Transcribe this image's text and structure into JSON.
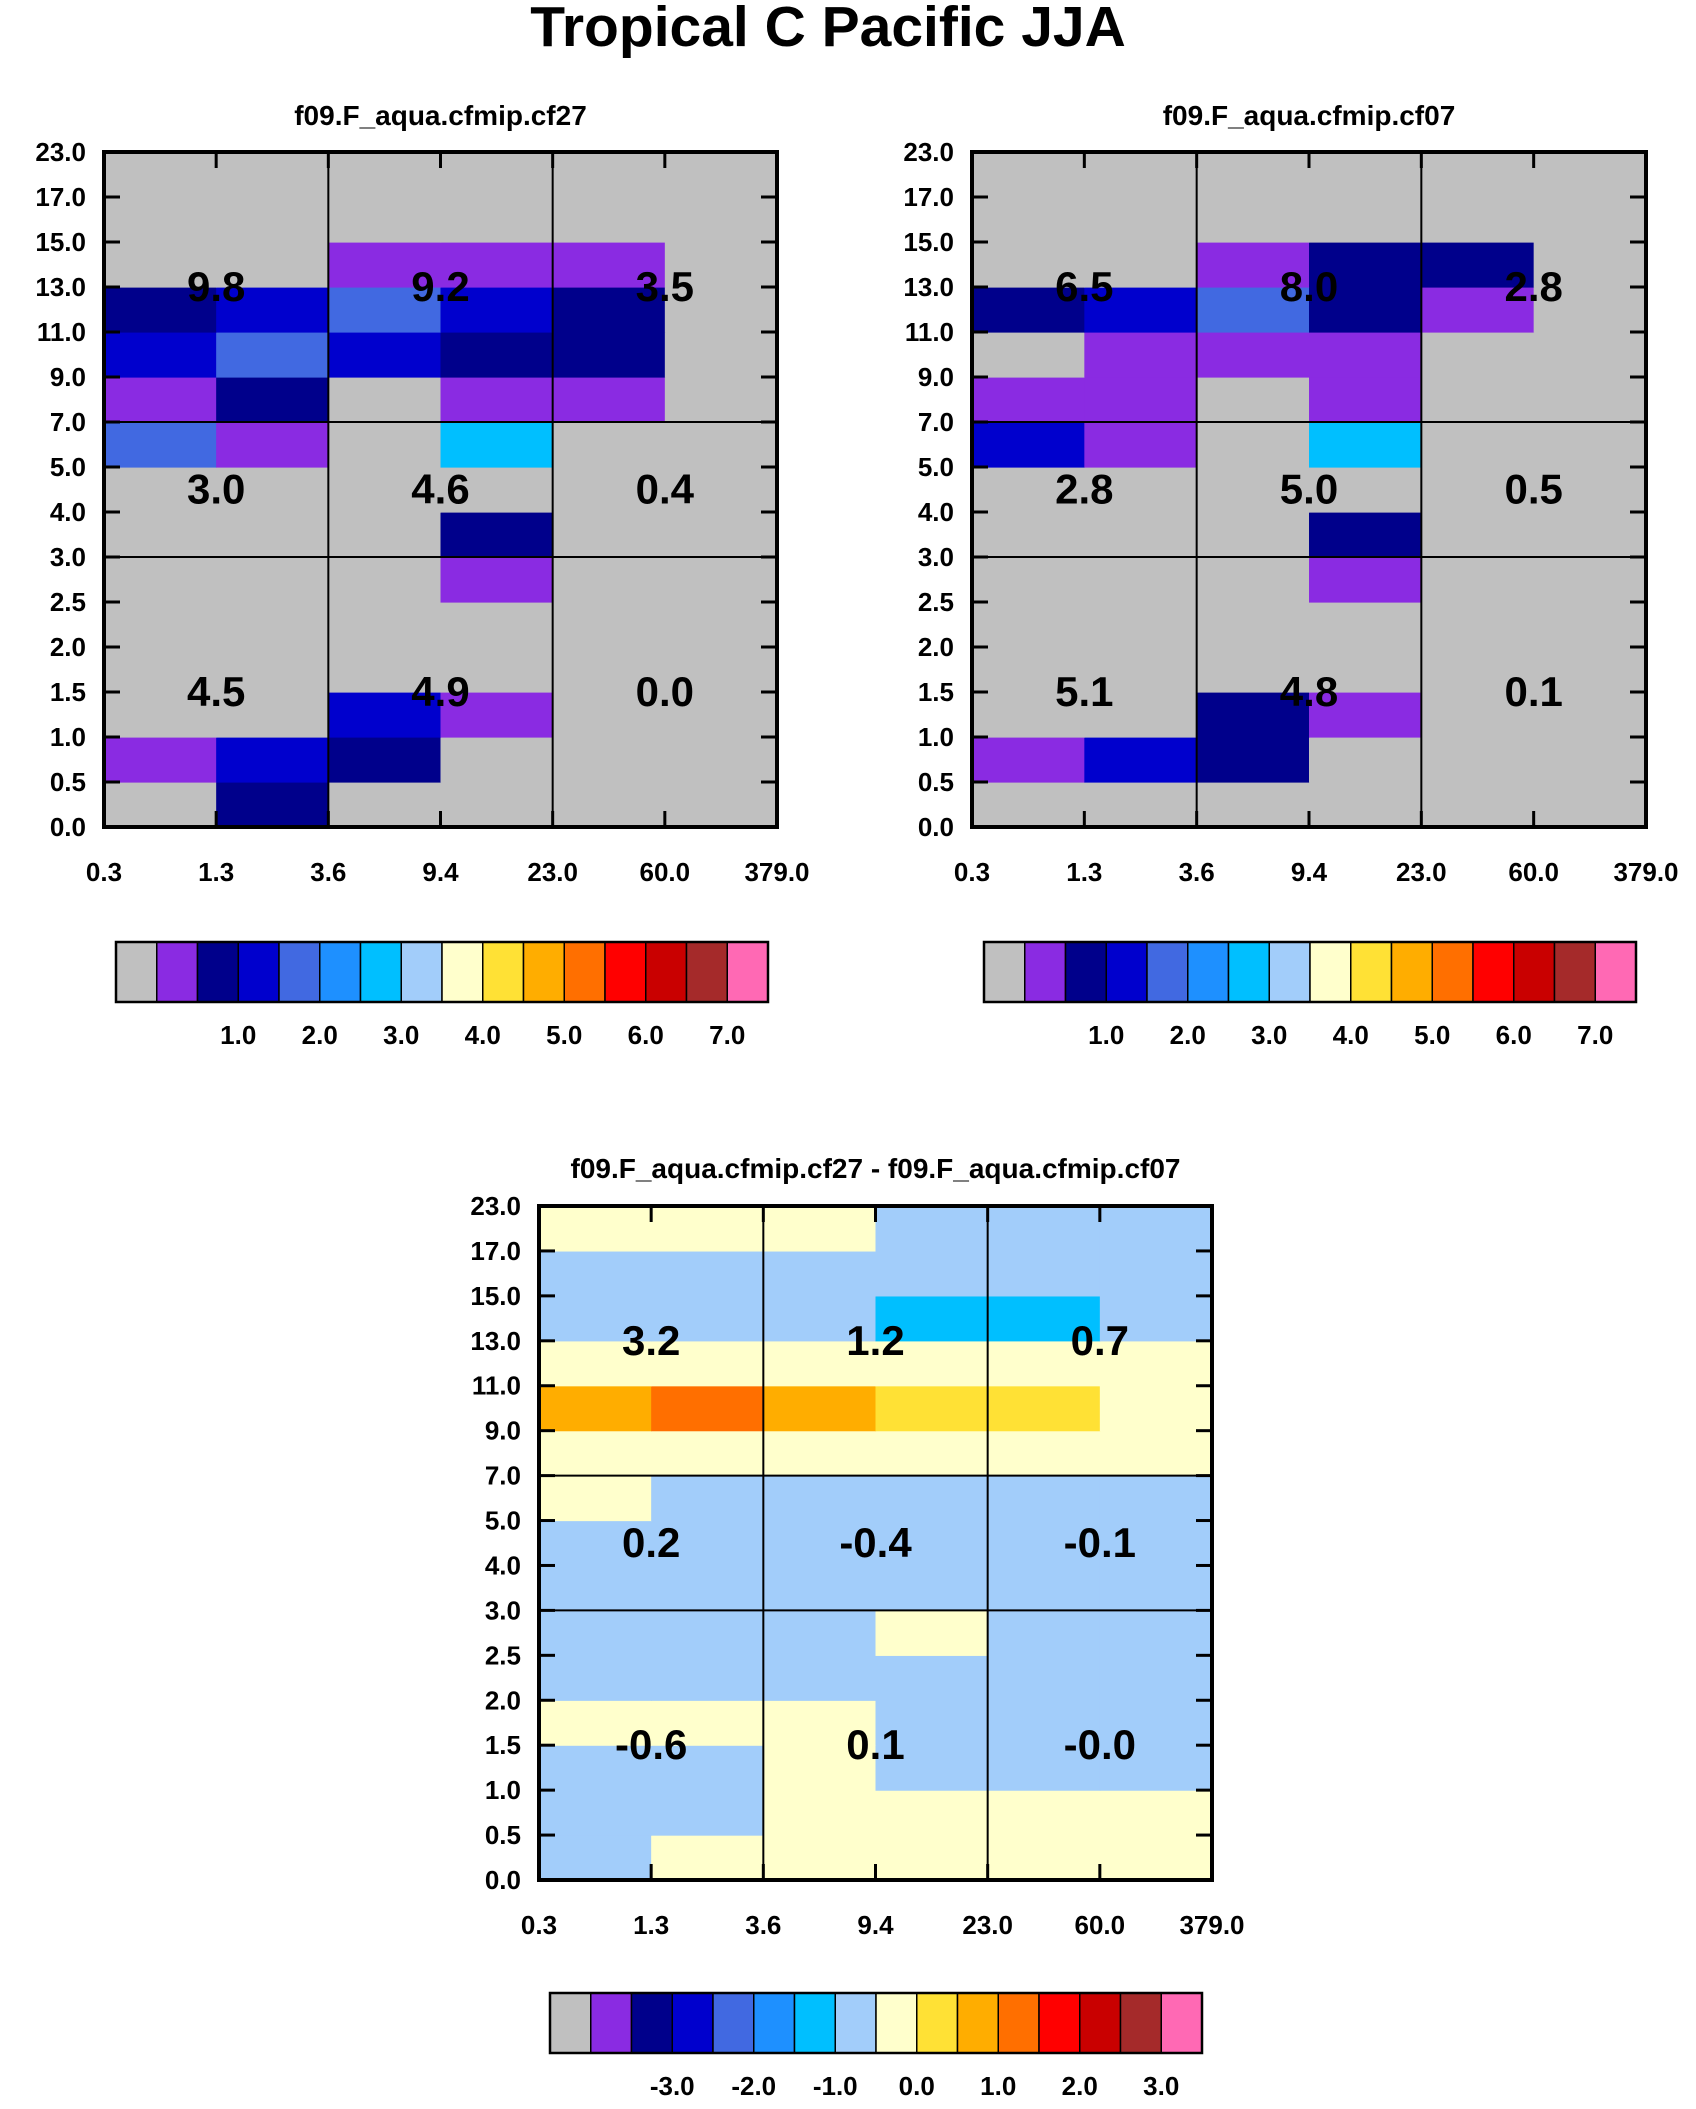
{
  "figure_title": "Tropical C Pacific JJA",
  "colors": {
    "palette": [
      "#c0c0c0",
      "#8a2be2",
      "#00008b",
      "#0000cd",
      "#4169e1",
      "#1e90ff",
      "#00bfff",
      "#a2cdfa",
      "#ffffcc",
      "#ffe135",
      "#ffad00",
      "#ff6f00",
      "#ff0000",
      "#c90000",
      "#a52a2a",
      "#ff69b4"
    ],
    "panel_bg": "#c0c0c0",
    "grid": "#000000"
  },
  "chart_data": [
    {
      "type": "heatmap",
      "title": "f09.F_aqua.cfmip.cf27",
      "x_ticks": [
        "0.3",
        "1.3",
        "3.6",
        "9.4",
        "23.0",
        "60.0",
        "379.0"
      ],
      "y_ticks": [
        "0.0",
        "0.5",
        "1.0",
        "1.5",
        "2.0",
        "2.5",
        "3.0",
        "4.0",
        "5.0",
        "7.0",
        "9.0",
        "11.0",
        "13.0",
        "15.0",
        "17.0",
        "23.0"
      ],
      "cell_colors": [
        [
          0,
          2,
          0,
          0,
          0,
          0
        ],
        [
          1,
          3,
          2,
          0,
          0,
          0
        ],
        [
          0,
          0,
          3,
          1,
          0,
          0
        ],
        [
          0,
          0,
          0,
          0,
          0,
          0
        ],
        [
          0,
          0,
          0,
          0,
          0,
          0
        ],
        [
          0,
          0,
          0,
          1,
          0,
          0
        ],
        [
          0,
          0,
          0,
          2,
          0,
          0
        ],
        [
          0,
          0,
          0,
          0,
          0,
          0
        ],
        [
          4,
          1,
          0,
          6,
          0,
          0
        ],
        [
          1,
          2,
          0,
          1,
          1,
          0
        ],
        [
          3,
          4,
          3,
          2,
          2,
          0
        ],
        [
          2,
          3,
          4,
          3,
          2,
          0
        ],
        [
          0,
          0,
          1,
          1,
          1,
          0
        ],
        [
          0,
          0,
          0,
          0,
          0,
          0
        ],
        [
          0,
          0,
          0,
          0,
          0,
          0
        ]
      ],
      "box_labels": [
        [
          "4.5",
          "4.9",
          "0.0"
        ],
        [
          "3.0",
          "4.6",
          "0.4"
        ],
        [
          "9.8",
          "9.2",
          "3.5"
        ]
      ],
      "colorbar_labels": [
        "1.0",
        "2.0",
        "3.0",
        "4.0",
        "5.0",
        "6.0",
        "7.0"
      ]
    },
    {
      "type": "heatmap",
      "title": "f09.F_aqua.cfmip.cf07",
      "x_ticks": [
        "0.3",
        "1.3",
        "3.6",
        "9.4",
        "23.0",
        "60.0",
        "379.0"
      ],
      "y_ticks": [
        "0.0",
        "0.5",
        "1.0",
        "1.5",
        "2.0",
        "2.5",
        "3.0",
        "4.0",
        "5.0",
        "7.0",
        "9.0",
        "11.0",
        "13.0",
        "15.0",
        "17.0",
        "23.0"
      ],
      "cell_colors": [
        [
          0,
          0,
          0,
          0,
          0,
          0
        ],
        [
          1,
          3,
          2,
          0,
          0,
          0
        ],
        [
          0,
          0,
          2,
          1,
          0,
          0
        ],
        [
          0,
          0,
          0,
          0,
          0,
          0
        ],
        [
          0,
          0,
          0,
          0,
          0,
          0
        ],
        [
          0,
          0,
          0,
          1,
          0,
          0
        ],
        [
          0,
          0,
          0,
          2,
          0,
          0
        ],
        [
          0,
          0,
          0,
          0,
          0,
          0
        ],
        [
          3,
          1,
          0,
          6,
          0,
          0
        ],
        [
          1,
          1,
          0,
          1,
          0,
          0
        ],
        [
          0,
          1,
          1,
          1,
          0,
          0
        ],
        [
          2,
          3,
          4,
          2,
          1,
          0
        ],
        [
          0,
          0,
          1,
          2,
          2,
          0
        ],
        [
          0,
          0,
          0,
          0,
          0,
          0
        ],
        [
          0,
          0,
          0,
          0,
          0,
          0
        ]
      ],
      "box_labels": [
        [
          "5.1",
          "4.8",
          "0.1"
        ],
        [
          "2.8",
          "5.0",
          "0.5"
        ],
        [
          "6.5",
          "8.0",
          "2.8"
        ]
      ],
      "colorbar_labels": [
        "1.0",
        "2.0",
        "3.0",
        "4.0",
        "5.0",
        "6.0",
        "7.0"
      ]
    },
    {
      "type": "heatmap",
      "title": "f09.F_aqua.cfmip.cf27 - f09.F_aqua.cfmip.cf07",
      "x_ticks": [
        "0.3",
        "1.3",
        "3.6",
        "9.4",
        "23.0",
        "60.0",
        "379.0"
      ],
      "y_ticks": [
        "0.0",
        "0.5",
        "1.0",
        "1.5",
        "2.0",
        "2.5",
        "3.0",
        "4.0",
        "5.0",
        "7.0",
        "9.0",
        "11.0",
        "13.0",
        "15.0",
        "17.0",
        "23.0"
      ],
      "cell_colors": [
        [
          7,
          8,
          8,
          8,
          8,
          8
        ],
        [
          7,
          7,
          8,
          8,
          8,
          8
        ],
        [
          7,
          7,
          8,
          7,
          7,
          7
        ],
        [
          8,
          8,
          8,
          7,
          7,
          7
        ],
        [
          7,
          7,
          7,
          7,
          7,
          7
        ],
        [
          7,
          7,
          7,
          8,
          7,
          7
        ],
        [
          7,
          7,
          7,
          7,
          7,
          7
        ],
        [
          7,
          7,
          7,
          7,
          7,
          7
        ],
        [
          8,
          7,
          7,
          7,
          7,
          7
        ],
        [
          8,
          8,
          8,
          8,
          8,
          8
        ],
        [
          10,
          11,
          10,
          9,
          9,
          8
        ],
        [
          8,
          8,
          8,
          8,
          8,
          8
        ],
        [
          7,
          7,
          7,
          6,
          6,
          7
        ],
        [
          7,
          7,
          7,
          7,
          7,
          7
        ],
        [
          8,
          8,
          8,
          7,
          7,
          7
        ]
      ],
      "box_labels": [
        [
          "-0.6",
          "0.1",
          "-0.0"
        ],
        [
          "0.2",
          "-0.4",
          "-0.1"
        ],
        [
          "3.2",
          "1.2",
          "0.7"
        ]
      ],
      "colorbar_labels": [
        "-3.0",
        "-2.0",
        "-1.0",
        "0.0",
        "1.0",
        "2.0",
        "3.0"
      ]
    }
  ]
}
